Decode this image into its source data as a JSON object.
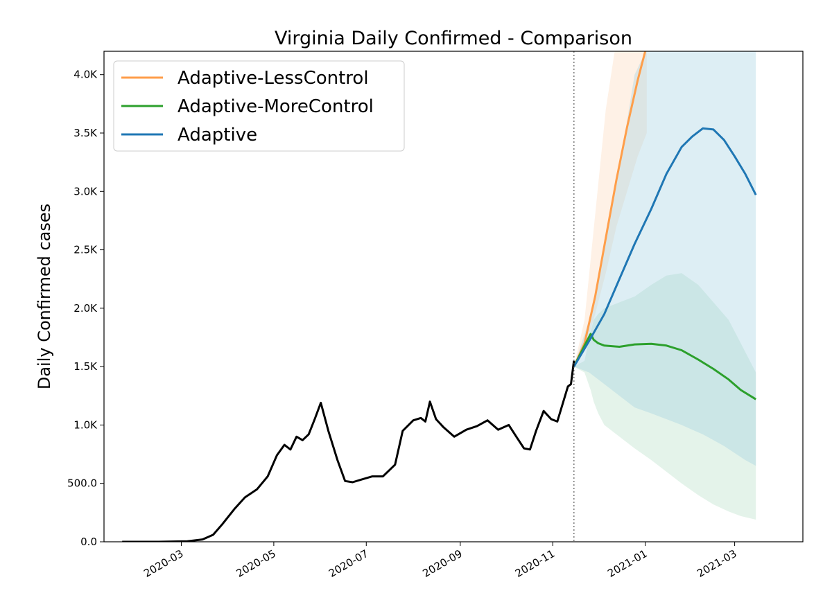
{
  "chart_data": {
    "type": "line",
    "title": "Virginia Daily Confirmed - Comparison",
    "xlabel": "",
    "ylabel": "Daily Confirmed cases",
    "xlim": [
      "2020-01-10",
      "2021-04-15"
    ],
    "ylim": [
      0,
      4200
    ],
    "forecast_start": "2020-11-15",
    "x_ticks": [
      "2020-03",
      "2020-05",
      "2020-07",
      "2020-09",
      "2020-11",
      "2021-01",
      "2021-03"
    ],
    "y_ticks": [
      {
        "value": 0,
        "label": "0.0"
      },
      {
        "value": 500,
        "label": "500.0"
      },
      {
        "value": 1000,
        "label": "1.0K"
      },
      {
        "value": 1500,
        "label": "1.5K"
      },
      {
        "value": 2000,
        "label": "2.0K"
      },
      {
        "value": 2500,
        "label": "2.5K"
      },
      {
        "value": 3000,
        "label": "3.0K"
      },
      {
        "value": 3500,
        "label": "3.5K"
      },
      {
        "value": 4000,
        "label": "4.0K"
      }
    ],
    "legend": {
      "position": "top-left"
    },
    "observed": {
      "color": "#000000",
      "x": [
        "2020-01-22",
        "2020-02-15",
        "2020-03-05",
        "2020-03-15",
        "2020-03-22",
        "2020-03-28",
        "2020-04-05",
        "2020-04-12",
        "2020-04-20",
        "2020-04-27",
        "2020-05-03",
        "2020-05-08",
        "2020-05-12",
        "2020-05-16",
        "2020-05-20",
        "2020-05-24",
        "2020-05-28",
        "2020-06-01",
        "2020-06-06",
        "2020-06-12",
        "2020-06-17",
        "2020-06-22",
        "2020-06-27",
        "2020-07-05",
        "2020-07-12",
        "2020-07-20",
        "2020-07-25",
        "2020-08-01",
        "2020-08-06",
        "2020-08-09",
        "2020-08-12",
        "2020-08-16",
        "2020-08-21",
        "2020-08-28",
        "2020-09-05",
        "2020-09-12",
        "2020-09-19",
        "2020-09-26",
        "2020-10-03",
        "2020-10-08",
        "2020-10-13",
        "2020-10-17",
        "2020-10-21",
        "2020-10-26",
        "2020-10-31",
        "2020-11-04",
        "2020-11-08",
        "2020-11-11",
        "2020-11-13",
        "2020-11-15"
      ],
      "y": [
        0,
        0,
        5,
        20,
        60,
        150,
        280,
        380,
        450,
        560,
        740,
        830,
        790,
        900,
        870,
        920,
        1050,
        1190,
        950,
        700,
        520,
        510,
        530,
        560,
        560,
        660,
        950,
        1040,
        1060,
        1030,
        1200,
        1050,
        980,
        900,
        960,
        990,
        1040,
        960,
        1000,
        900,
        800,
        790,
        950,
        1120,
        1050,
        1030,
        1200,
        1330,
        1350,
        1550
      ]
    },
    "series": [
      {
        "name": "Adaptive-LessControl",
        "color": "#ff9e4a",
        "x": [
          "2020-11-15",
          "2020-11-22",
          "2020-11-29",
          "2020-12-06",
          "2020-12-13",
          "2020-12-20",
          "2020-12-27",
          "2021-01-02"
        ],
        "y": [
          1500,
          1700,
          2100,
          2600,
          3100,
          3550,
          3950,
          4250
        ],
        "band": {
          "color": "#fde0c8",
          "opacity": 0.45,
          "lower": [
            1500,
            1650,
            1950,
            2300,
            2700,
            3000,
            3300,
            3500
          ],
          "upper": [
            1500,
            1900,
            2800,
            3700,
            4300,
            4300,
            4300,
            4300
          ]
        }
      },
      {
        "name": "Adaptive-MoreControl",
        "color": "#2ca02c",
        "x": [
          "2020-11-15",
          "2020-11-22",
          "2020-11-26",
          "2020-11-28",
          "2020-12-01",
          "2020-12-05",
          "2020-12-15",
          "2020-12-25",
          "2021-01-05",
          "2021-01-15",
          "2021-01-25",
          "2021-02-05",
          "2021-02-15",
          "2021-02-25",
          "2021-03-05",
          "2021-03-15"
        ],
        "y": [
          1500,
          1680,
          1780,
          1730,
          1700,
          1680,
          1670,
          1690,
          1695,
          1680,
          1640,
          1560,
          1480,
          1390,
          1300,
          1220
        ],
        "band": {
          "color": "#a5d7b8",
          "opacity": 0.3,
          "lower": [
            1500,
            1450,
            1300,
            1200,
            1100,
            1000,
            900,
            800,
            700,
            600,
            500,
            400,
            320,
            260,
            220,
            190
          ],
          "upper": [
            1500,
            1550,
            1800,
            1900,
            1950,
            2000,
            2050,
            2100,
            2200,
            2280,
            2300,
            2200,
            2050,
            1900,
            1700,
            1450
          ]
        }
      },
      {
        "name": "Adaptive",
        "color": "#1f77b4",
        "x": [
          "2020-11-15",
          "2020-11-25",
          "2020-12-05",
          "2020-12-15",
          "2020-12-25",
          "2021-01-05",
          "2021-01-15",
          "2021-01-25",
          "2021-02-01",
          "2021-02-08",
          "2021-02-15",
          "2021-02-22",
          "2021-03-01",
          "2021-03-08",
          "2021-03-15"
        ],
        "y": [
          1500,
          1720,
          1950,
          2250,
          2550,
          2850,
          3150,
          3380,
          3470,
          3540,
          3530,
          3440,
          3300,
          3150,
          2970
        ],
        "band": {
          "color": "#9fcfe0",
          "opacity": 0.35,
          "lower": [
            1500,
            1450,
            1350,
            1250,
            1150,
            1100,
            1050,
            1000,
            960,
            920,
            870,
            820,
            760,
            700,
            650
          ],
          "upper": [
            1500,
            1900,
            2500,
            3200,
            4000,
            4300,
            4300,
            4300,
            4300,
            4300,
            4300,
            4300,
            4300,
            4300,
            4300
          ]
        }
      }
    ]
  }
}
